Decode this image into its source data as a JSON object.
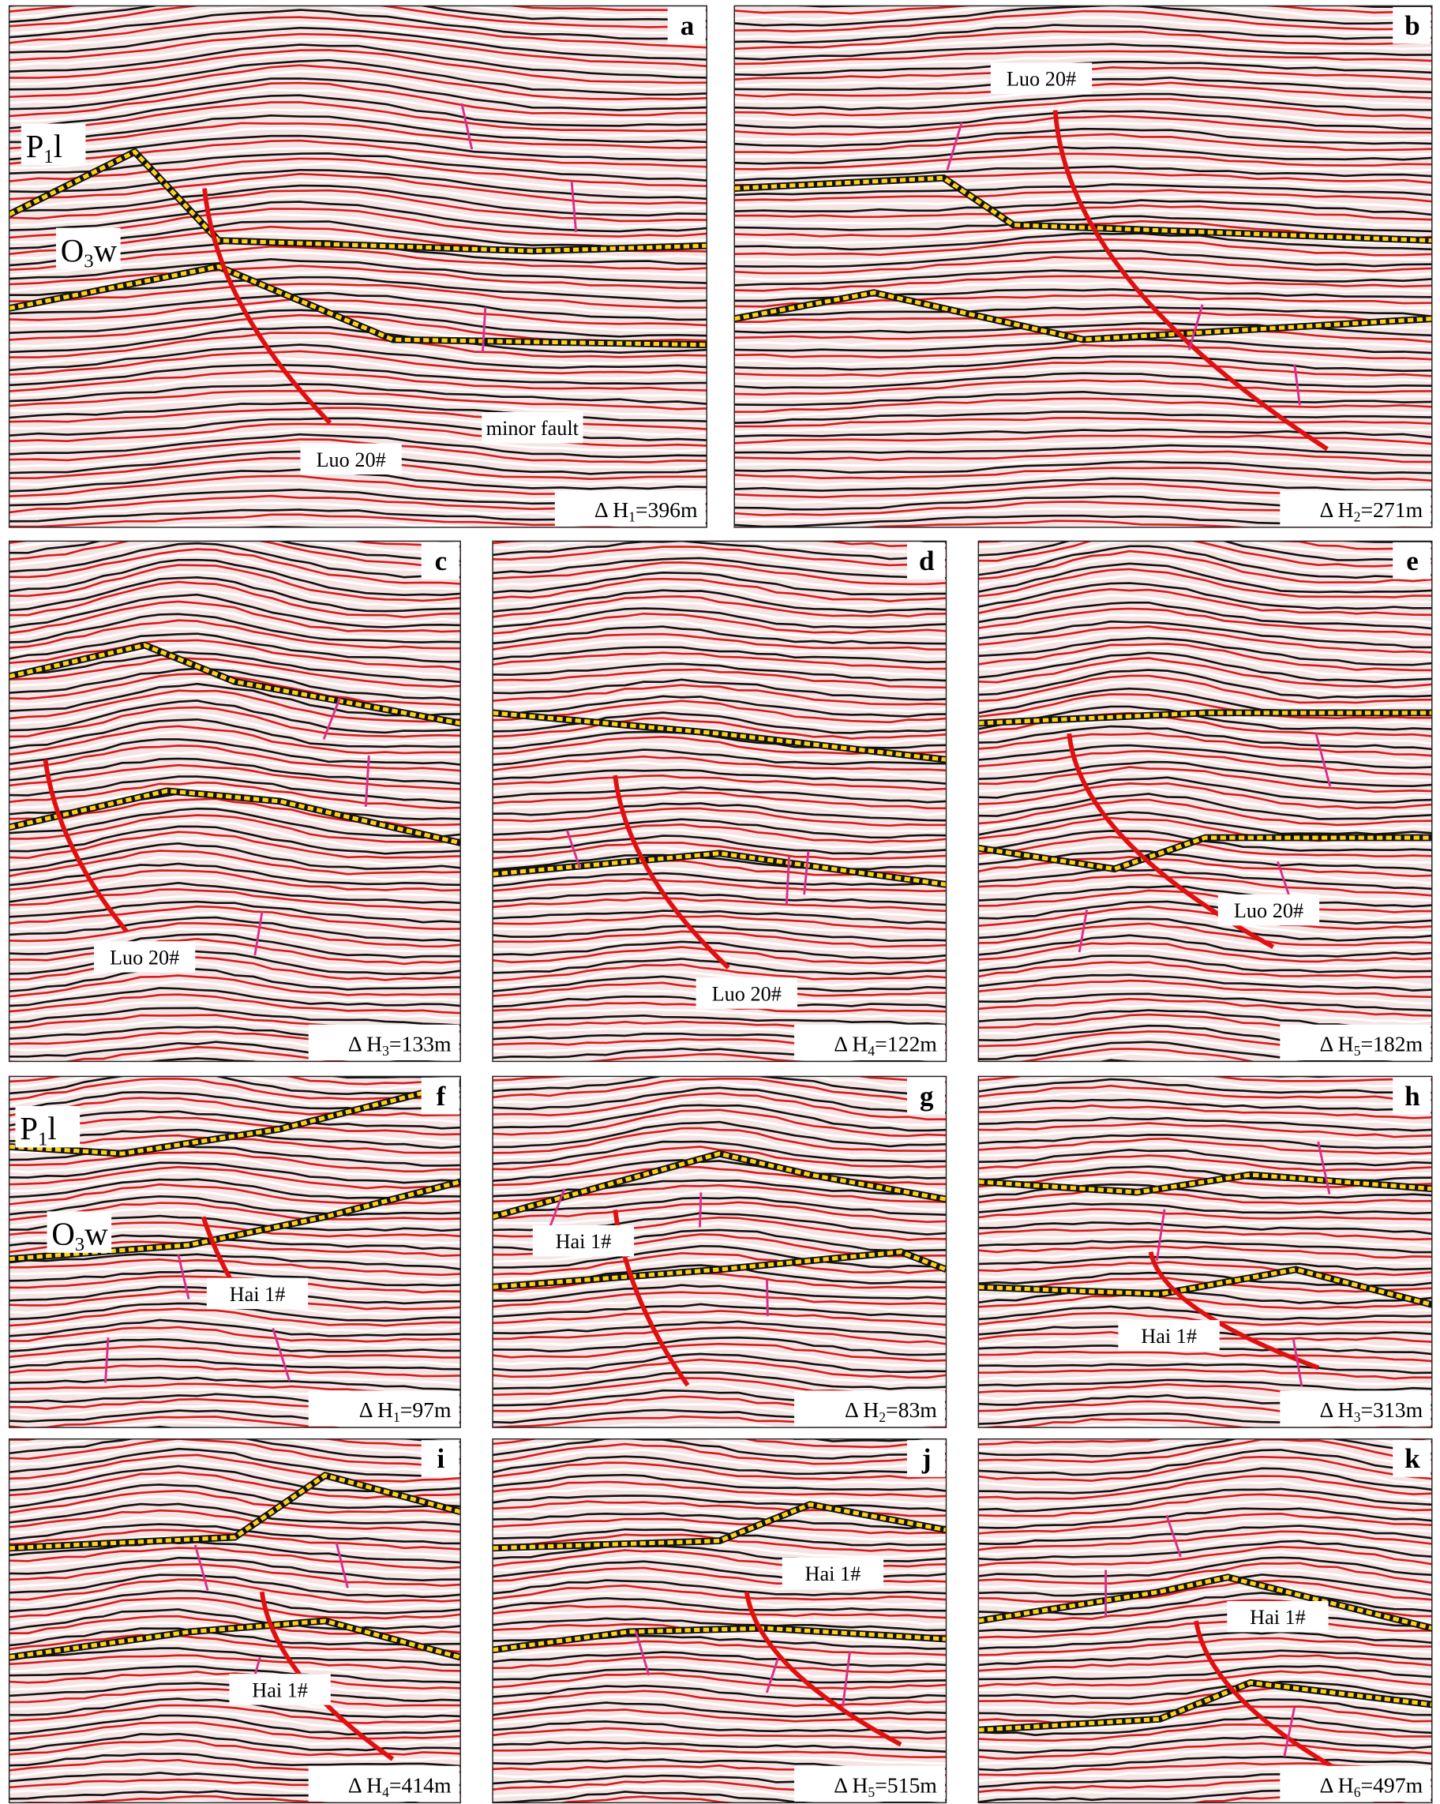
{
  "panels": [
    {
      "letter": "a",
      "delta": {
        "prefix": "Δ H",
        "sub": "1",
        "suffix": "=396m"
      },
      "labels": [
        "Luo 20#",
        "minor fault"
      ],
      "formations": [
        {
          "base": "P",
          "sub": "1",
          "tail": "l"
        },
        {
          "base": "O",
          "sub": "3",
          "tail": "w"
        }
      ]
    },
    {
      "letter": "b",
      "delta": {
        "prefix": "Δ H",
        "sub": "2",
        "suffix": "=271m"
      },
      "labels": [
        "Luo 20#"
      ],
      "formations": []
    },
    {
      "letter": "c",
      "delta": {
        "prefix": "Δ H",
        "sub": "3",
        "suffix": "=133m"
      },
      "labels": [
        "Luo 20#"
      ],
      "formations": []
    },
    {
      "letter": "d",
      "delta": {
        "prefix": "Δ H",
        "sub": "4",
        "suffix": "=122m"
      },
      "labels": [
        "Luo 20#"
      ],
      "formations": []
    },
    {
      "letter": "e",
      "delta": {
        "prefix": "Δ H",
        "sub": "5",
        "suffix": "=182m"
      },
      "labels": [
        "Luo 20#"
      ],
      "formations": []
    },
    {
      "letter": "f",
      "delta": {
        "prefix": "Δ H",
        "sub": "1",
        "suffix": "=97m"
      },
      "labels": [
        "Hai 1#"
      ],
      "formations": [
        {
          "base": "P",
          "sub": "1",
          "tail": "l"
        },
        {
          "base": "O",
          "sub": "3",
          "tail": "w"
        }
      ]
    },
    {
      "letter": "g",
      "delta": {
        "prefix": "Δ H",
        "sub": "2",
        "suffix": "=83m"
      },
      "labels": [
        "Hai 1#"
      ],
      "formations": []
    },
    {
      "letter": "h",
      "delta": {
        "prefix": "Δ H",
        "sub": "3",
        "suffix": "=313m"
      },
      "labels": [
        "Hai 1#"
      ],
      "formations": []
    },
    {
      "letter": "i",
      "delta": {
        "prefix": "Δ H",
        "sub": "4",
        "suffix": "=414m"
      },
      "labels": [
        "Hai 1#"
      ],
      "formations": []
    },
    {
      "letter": "j",
      "delta": {
        "prefix": "Δ H",
        "sub": "5",
        "suffix": "=515m"
      },
      "labels": [
        "Hai 1#"
      ],
      "formations": []
    },
    {
      "letter": "k",
      "delta": {
        "prefix": "Δ H",
        "sub": "6",
        "suffix": "=497m"
      },
      "labels": [
        "Hai 1#"
      ],
      "formations": []
    }
  ]
}
